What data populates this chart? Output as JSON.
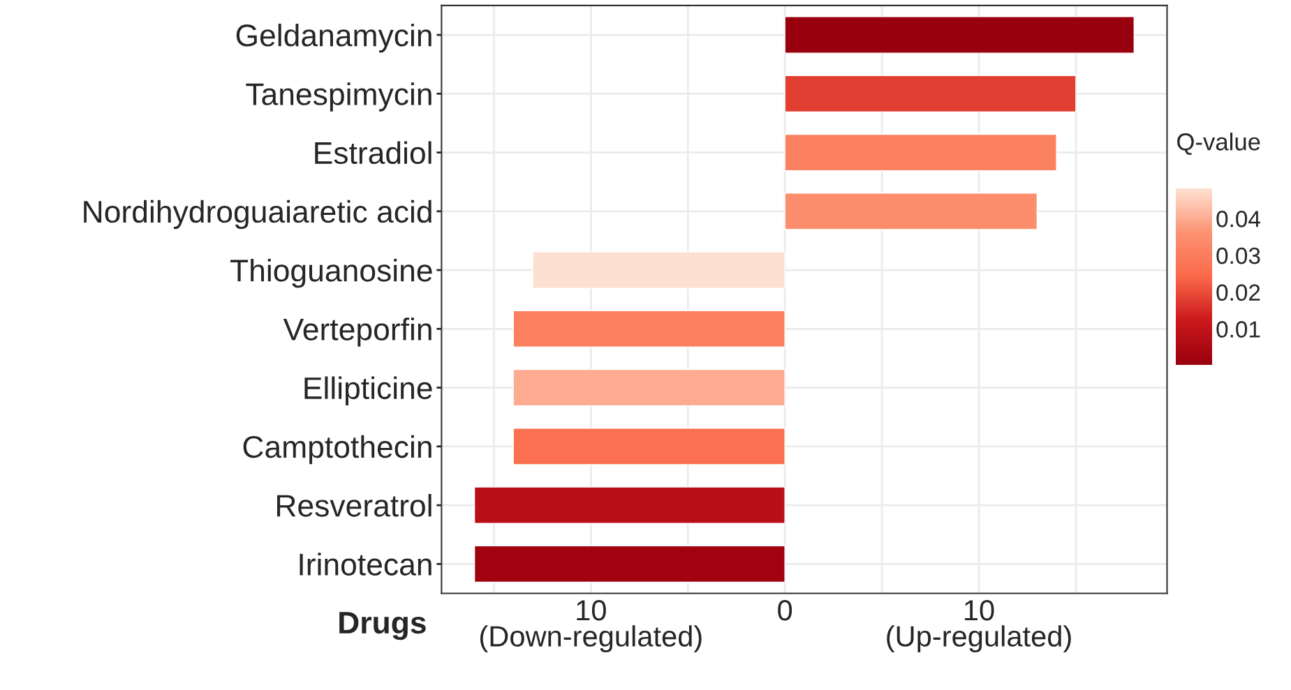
{
  "chart_data": {
    "type": "bar",
    "orientation": "horizontal",
    "ylabel": "Drugs",
    "clabel": "Q-value",
    "categories": [
      "Geldanamycin",
      "Tanespimycin",
      "Estradiol",
      "Nordihydroguaiaretic acid",
      "Thioguanosine",
      "Verteporfin",
      "Ellipticine",
      "Camptothecin",
      "Resveratrol",
      "Irinotecan"
    ],
    "values": [
      18,
      15,
      14,
      13,
      -13,
      -14,
      -14,
      -14,
      -16,
      -16
    ],
    "cvalues": [
      0.0002,
      0.018,
      0.031,
      0.035,
      0.0482,
      0.031,
      0.04,
      0.026,
      0.008,
      0.002
    ],
    "clim": [
      0.0002,
      0.0482
    ],
    "cticks": [
      0.01,
      0.02,
      0.03,
      0.04
    ],
    "xlim": [
      -17.7,
      19.7
    ],
    "xticks": [
      {
        "value": -15,
        "label": null
      },
      {
        "value": -10,
        "label": "10\n(Down-regulated)"
      },
      {
        "value": -5,
        "label": null
      },
      {
        "value": 0,
        "label": "0\n "
      },
      {
        "value": 5,
        "label": null
      },
      {
        "value": 10,
        "label": "10\n(Up-regulated)"
      },
      {
        "value": 15,
        "label": null
      }
    ],
    "grid": true,
    "legend": false
  }
}
